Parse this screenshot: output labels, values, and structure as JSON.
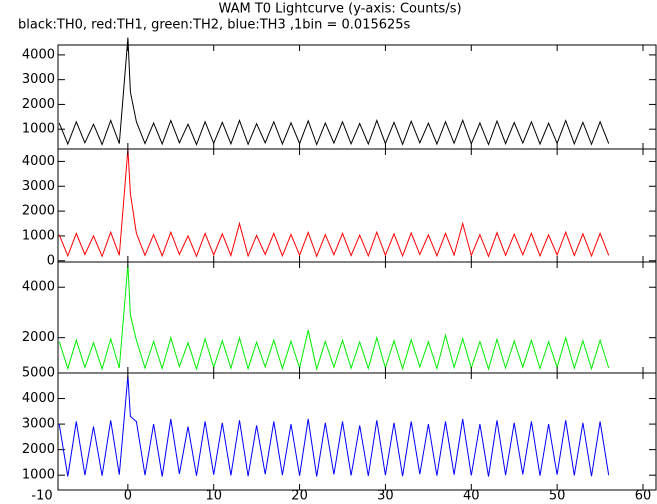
{
  "chart_data": [
    {
      "type": "line",
      "title": "WAM T0 Lightcurve (y-axis: Counts/s)",
      "subtitle": "black:TH0, red:TH1, green:TH2, blue:TH3 ,1bin = 0.015625s",
      "color": "#000000",
      "x": [
        -8,
        -7,
        -6,
        -5,
        -4,
        -3,
        -2,
        -1,
        0,
        0.3,
        1,
        2,
        3,
        4,
        5,
        6,
        7,
        8,
        9,
        10,
        11,
        12,
        13,
        14,
        15,
        16,
        17,
        18,
        19,
        20,
        21,
        22,
        23,
        24,
        25,
        26,
        27,
        28,
        29,
        30,
        31,
        32,
        33,
        34,
        35,
        36,
        37,
        38,
        39,
        40,
        41,
        42,
        43,
        44,
        45,
        46,
        47,
        48,
        49,
        50,
        51,
        52,
        53,
        54,
        55,
        56
      ],
      "values": [
        1250,
        400,
        1300,
        450,
        1200,
        380,
        1350,
        420,
        4700,
        2500,
        1300,
        420,
        1250,
        400,
        1350,
        450,
        1200,
        380,
        1300,
        430,
        1280,
        410,
        1350,
        390,
        1220,
        450,
        1300,
        400,
        1260,
        420,
        1340,
        380,
        1250,
        440,
        1300,
        410,
        1230,
        400,
        1350,
        420,
        1280,
        390,
        1320,
        450,
        1240,
        400,
        1300,
        430,
        1360,
        410,
        1250,
        380,
        1330,
        420,
        1270,
        440,
        1300,
        400,
        1240,
        430,
        1350,
        410,
        1280,
        390,
        1300,
        420
      ],
      "xlim": [
        -10,
        60
      ],
      "ylim": [
        200,
        4400
      ],
      "yticks": [
        1000,
        2000,
        3000,
        4000
      ]
    },
    {
      "type": "line",
      "color": "#ff0000",
      "x": [
        -8,
        -7,
        -6,
        -5,
        -4,
        -3,
        -2,
        -1,
        0,
        0.3,
        1,
        2,
        3,
        4,
        5,
        6,
        7,
        8,
        9,
        10,
        11,
        12,
        13,
        14,
        15,
        16,
        17,
        18,
        19,
        20,
        21,
        22,
        23,
        24,
        25,
        26,
        27,
        28,
        29,
        30,
        31,
        32,
        33,
        34,
        35,
        36,
        37,
        38,
        39,
        40,
        41,
        42,
        43,
        44,
        45,
        46,
        47,
        48,
        49,
        50,
        51,
        52,
        53,
        54,
        55,
        56
      ],
      "values": [
        1050,
        200,
        1100,
        250,
        1000,
        180,
        1150,
        220,
        4500,
        2700,
        1100,
        220,
        1050,
        200,
        1150,
        250,
        1000,
        180,
        1100,
        230,
        1080,
        210,
        1500,
        190,
        1020,
        250,
        1100,
        200,
        1060,
        220,
        1140,
        180,
        1050,
        240,
        1100,
        210,
        1030,
        200,
        1150,
        220,
        1080,
        190,
        1120,
        250,
        1040,
        200,
        1100,
        230,
        1500,
        210,
        1050,
        180,
        1130,
        220,
        1070,
        240,
        1100,
        200,
        1040,
        230,
        1150,
        210,
        1080,
        190,
        1100,
        220
      ],
      "xlim": [
        -10,
        60
      ],
      "ylim": [
        -50,
        4500
      ],
      "yticks": [
        0,
        1000,
        2000,
        3000,
        4000
      ]
    },
    {
      "type": "line",
      "color": "#00ee00",
      "x": [
        -8,
        -7,
        -6,
        -5,
        -4,
        -3,
        -2,
        -1,
        0,
        0.3,
        1,
        2,
        3,
        4,
        5,
        6,
        7,
        8,
        9,
        10,
        11,
        12,
        13,
        14,
        15,
        16,
        17,
        18,
        19,
        20,
        21,
        22,
        23,
        24,
        25,
        26,
        27,
        28,
        29,
        30,
        31,
        32,
        33,
        34,
        35,
        36,
        37,
        38,
        39,
        40,
        41,
        42,
        43,
        44,
        45,
        46,
        47,
        48,
        49,
        50,
        51,
        52,
        53,
        54,
        55,
        56
      ],
      "values": [
        1850,
        780,
        1900,
        820,
        1800,
        760,
        1950,
        800,
        4900,
        2900,
        1900,
        800,
        1850,
        780,
        2000,
        850,
        1800,
        760,
        1950,
        820,
        1880,
        790,
        2000,
        770,
        1820,
        840,
        1900,
        780,
        1860,
        800,
        2300,
        760,
        1850,
        830,
        1900,
        790,
        1830,
        780,
        2000,
        800,
        1880,
        770,
        1920,
        840,
        1840,
        780,
        2100,
        820,
        1960,
        790,
        1850,
        760,
        1930,
        800,
        1870,
        830,
        1900,
        780,
        1840,
        820,
        2000,
        790,
        1880,
        770,
        1900,
        800
      ],
      "xlim": [
        -10,
        60
      ],
      "ylim": [
        600,
        5000
      ],
      "yticks": [
        2000,
        4000
      ]
    },
    {
      "type": "line",
      "color": "#0000ff",
      "x": [
        -8,
        -7,
        -6,
        -5,
        -4,
        -3,
        -2,
        -1,
        0,
        0.3,
        1,
        2,
        3,
        4,
        5,
        6,
        7,
        8,
        9,
        10,
        11,
        12,
        13,
        14,
        15,
        16,
        17,
        18,
        19,
        20,
        21,
        22,
        23,
        24,
        25,
        26,
        27,
        28,
        29,
        30,
        31,
        32,
        33,
        34,
        35,
        36,
        37,
        38,
        39,
        40,
        41,
        42,
        43,
        44,
        45,
        46,
        47,
        48,
        49,
        50,
        51,
        52,
        53,
        54,
        55,
        56
      ],
      "values": [
        3000,
        950,
        3100,
        1000,
        2900,
        980,
        3150,
        1020,
        4900,
        3300,
        3100,
        1000,
        3000,
        950,
        3200,
        1050,
        2900,
        980,
        3100,
        1020,
        3050,
        990,
        3150,
        960,
        2950,
        1040,
        3100,
        1000,
        3000,
        980,
        3200,
        950,
        3050,
        1030,
        3100,
        990,
        2950,
        970,
        3150,
        1000,
        3050,
        960,
        3100,
        1040,
        3000,
        980,
        3100,
        1020,
        3200,
        990,
        3000,
        950,
        3150,
        1000,
        3050,
        1030,
        3100,
        980,
        3000,
        1020,
        3150,
        990,
        3050,
        960,
        3100,
        1000
      ],
      "xlim": [
        -10,
        60
      ],
      "ylim": [
        420,
        5000
      ],
      "yticks": [
        1000,
        2000,
        3000,
        4000,
        5000
      ],
      "xticks": [
        -10,
        0,
        10,
        20,
        30,
        40,
        50,
        60
      ]
    }
  ]
}
